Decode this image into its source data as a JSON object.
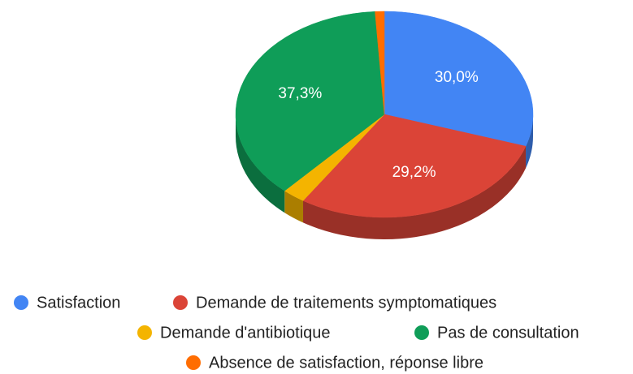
{
  "chart_data": {
    "type": "pie3d",
    "categories": [
      "Satisfaction",
      "Demande de traitements symptomatiques",
      "Demande d'antibiotique",
      "Pas de consultation",
      "Absence de satisfaction, réponse libre"
    ],
    "values": [
      30.0,
      29.2,
      2.5,
      37.3,
      1.0
    ],
    "value_labels": [
      "30,0%",
      "29,2%",
      null,
      "37,3%",
      null
    ],
    "colors": [
      "#4285f4",
      "#db4437",
      "#f4b400",
      "#0f9d58",
      "#ff6d01"
    ],
    "legend": "bottom"
  }
}
